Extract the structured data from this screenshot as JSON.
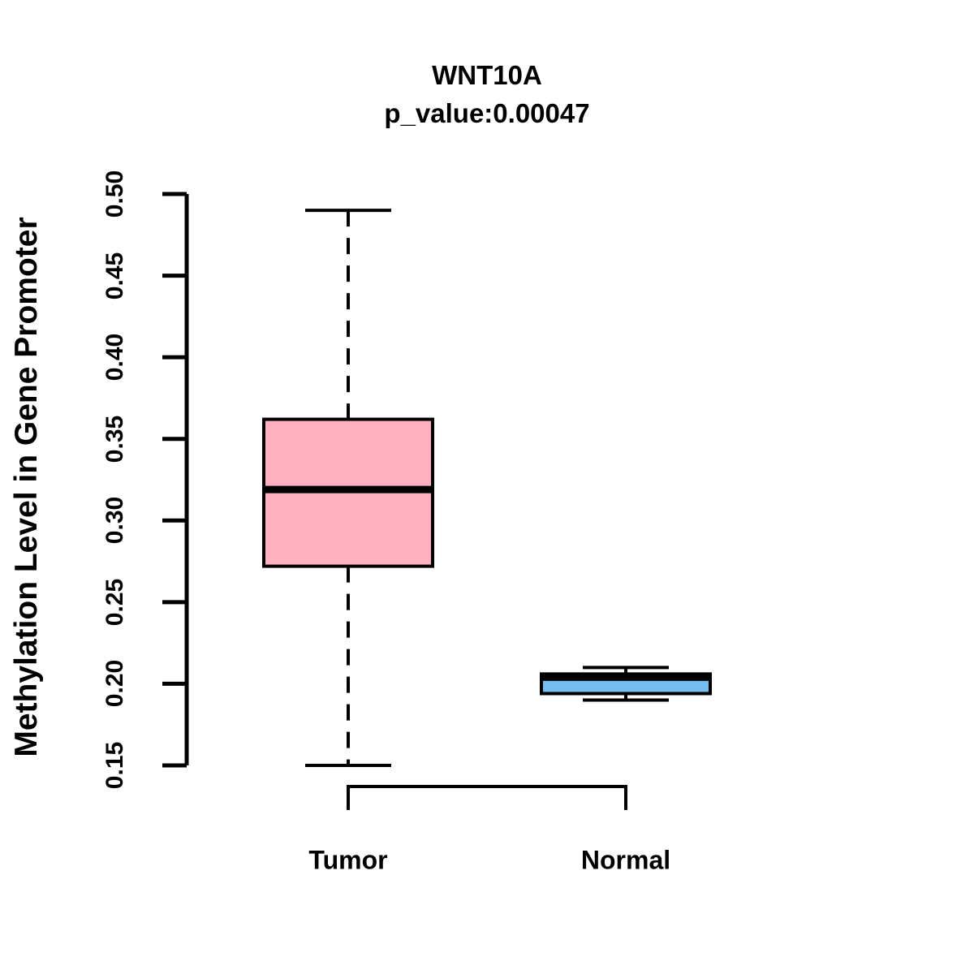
{
  "chart_data": {
    "type": "boxplot",
    "title": "WNT10A",
    "subtitle": "p_value:0.00047",
    "ylabel": "Methylation Level in Gene Promoter",
    "xlabel": "",
    "ylim": [
      0.15,
      0.5
    ],
    "yticks": [
      0.15,
      0.2,
      0.25,
      0.3,
      0.35,
      0.4,
      0.45,
      0.5
    ],
    "ytick_labels": [
      "0.15",
      "0.20",
      "0.25",
      "0.30",
      "0.35",
      "0.40",
      "0.45",
      "0.50"
    ],
    "grid": false,
    "legend": false,
    "categories": [
      "Tumor",
      "Normal"
    ],
    "series": [
      {
        "name": "Tumor",
        "lower_whisker": 0.15,
        "q1": 0.272,
        "median": 0.319,
        "q3": 0.362,
        "upper_whisker": 0.49,
        "fill": "#FFB1C1"
      },
      {
        "name": "Normal",
        "lower_whisker": 0.19,
        "q1": 0.194,
        "median": 0.204,
        "q3": 0.206,
        "upper_whisker": 0.21,
        "fill": "#75BEF0"
      }
    ],
    "colors": {
      "tumor_fill": "#FFB1C1",
      "normal_fill": "#75BEF0",
      "line": "#000000",
      "background": "#FFFFFF"
    }
  }
}
